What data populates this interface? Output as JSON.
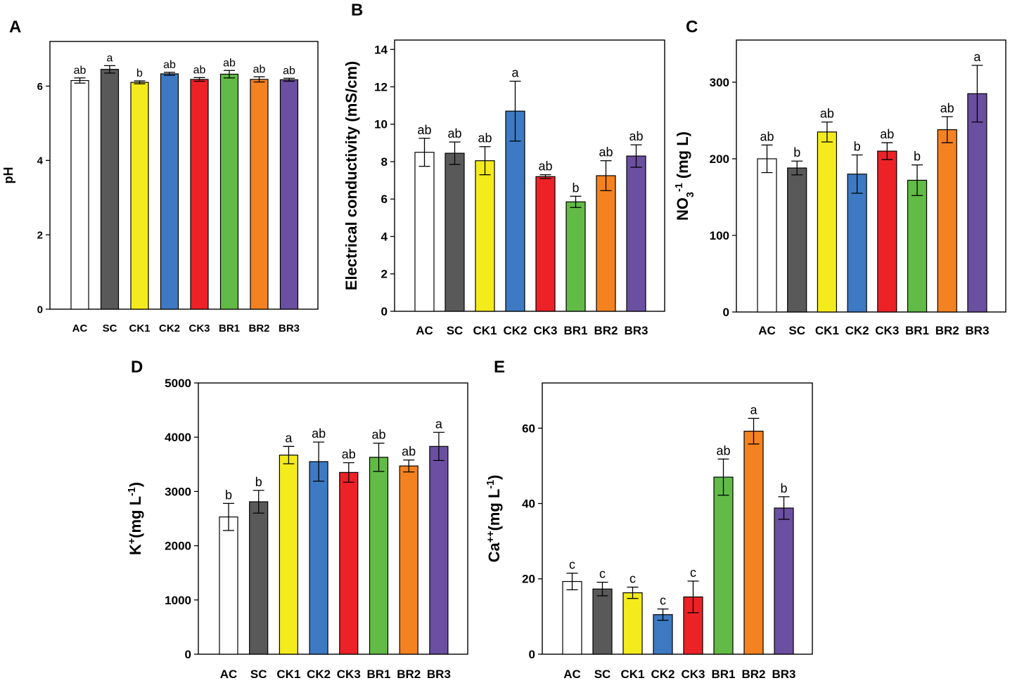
{
  "colors": {
    "AC": "#ffffff",
    "SC": "#595959",
    "CK1": "#f4eb1c",
    "CK2": "#3d7ac3",
    "CK3": "#ec2227",
    "BR1": "#62bb46",
    "BR2": "#f58220",
    "BR3": "#6b4fa0"
  },
  "chart_data": [
    {
      "panel": "A",
      "type": "bar",
      "ylabel": "pH",
      "ylim": [
        0,
        7.2
      ],
      "yticks": [
        0,
        2,
        4,
        6
      ],
      "categories": [
        "AC",
        "SC",
        "CK1",
        "CK2",
        "CK3",
        "BR1",
        "BR2",
        "BR3"
      ],
      "values": [
        6.15,
        6.45,
        6.1,
        6.33,
        6.18,
        6.32,
        6.18,
        6.17
      ],
      "errors": [
        0.07,
        0.1,
        0.04,
        0.04,
        0.05,
        0.1,
        0.07,
        0.04
      ],
      "letters": [
        "ab",
        "a",
        "b",
        "ab",
        "ab",
        "ab",
        "ab",
        "ab"
      ]
    },
    {
      "panel": "B",
      "type": "bar",
      "ylabel": "Electrical conductivity (mS/cm)",
      "ylim": [
        0,
        14.5
      ],
      "yticks": [
        0,
        2,
        4,
        6,
        8,
        10,
        12,
        14
      ],
      "categories": [
        "AC",
        "SC",
        "CK1",
        "CK2",
        "CK3",
        "BR1",
        "BR2",
        "BR3"
      ],
      "values": [
        8.5,
        8.45,
        8.05,
        10.7,
        7.2,
        5.85,
        7.25,
        8.3
      ],
      "errors": [
        0.75,
        0.6,
        0.75,
        1.6,
        0.1,
        0.3,
        0.8,
        0.6
      ],
      "letters": [
        "ab",
        "ab",
        "ab",
        "a",
        "ab",
        "b",
        "ab",
        "ab"
      ]
    },
    {
      "panel": "C",
      "type": "bar",
      "ylabel": "NO",
      "ylabel_sub": "3",
      "ylabel_unit": " (mg L",
      "ylabel_sup": "-1",
      "ylabel_end": ")",
      "ylim": [
        0,
        355
      ],
      "yticks": [
        0,
        100,
        200,
        300
      ],
      "categories": [
        "AC",
        "SC",
        "CK1",
        "CK2",
        "CK3",
        "BR1",
        "BR2",
        "BR3"
      ],
      "values": [
        200,
        188,
        235,
        180,
        210,
        172,
        238,
        285
      ],
      "errors": [
        18,
        9,
        13,
        25,
        11,
        20,
        17,
        37
      ],
      "letters": [
        "ab",
        "b",
        "ab",
        "b",
        "ab",
        "b",
        "ab",
        "a"
      ]
    },
    {
      "panel": "D",
      "type": "bar",
      "ylabel": "K",
      "ylabel_sup": "+",
      "ylabel_unit": "(mg L",
      "ylabel_sup2": "-1",
      "ylabel_end": ")",
      "ylim": [
        0,
        5000
      ],
      "yticks": [
        0,
        1000,
        2000,
        3000,
        4000,
        5000
      ],
      "categories": [
        "AC",
        "SC",
        "CK1",
        "CK2",
        "CK3",
        "BR1",
        "BR2",
        "BR3"
      ],
      "values": [
        2530,
        2810,
        3670,
        3550,
        3350,
        3630,
        3470,
        3830
      ],
      "errors": [
        250,
        210,
        160,
        360,
        180,
        260,
        110,
        260
      ],
      "letters": [
        "b",
        "b",
        "a",
        "ab",
        "ab",
        "ab",
        "ab",
        "a"
      ]
    },
    {
      "panel": "E",
      "type": "bar",
      "ylabel": "Ca",
      "ylabel_sup": "++",
      "ylabel_unit": "(mg L",
      "ylabel_sup2": "-1",
      "ylabel_end": ")",
      "ylim": [
        0,
        72
      ],
      "yticks": [
        0,
        20,
        40,
        60
      ],
      "categories": [
        "AC",
        "SC",
        "CK1",
        "CK2",
        "CK3",
        "BR1",
        "BR2",
        "BR3"
      ],
      "values": [
        19.3,
        17.3,
        16.3,
        10.5,
        15.2,
        47.0,
        59.2,
        38.8
      ],
      "errors": [
        2.2,
        1.8,
        1.5,
        1.5,
        4.2,
        4.8,
        3.4,
        3.0
      ],
      "letters": [
        "c",
        "c",
        "c",
        "c",
        "c",
        "ab",
        "a",
        "b"
      ]
    }
  ]
}
